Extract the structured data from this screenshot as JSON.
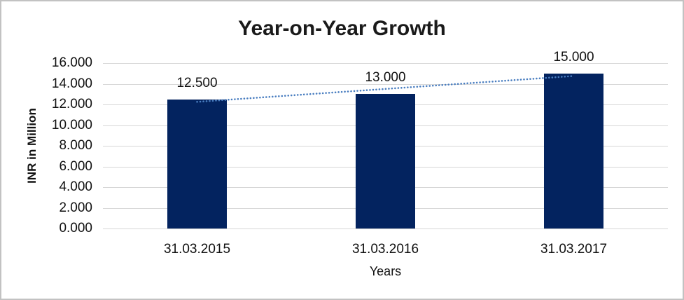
{
  "chart_data": {
    "type": "bar",
    "title": "Year-on-Year Growth",
    "categories": [
      "31.03.2015",
      "31.03.2016",
      "31.03.2017"
    ],
    "values": [
      12.5,
      13.0,
      15.0
    ],
    "value_labels": [
      "12.500",
      "13.000",
      "15.000"
    ],
    "xlabel": "Years",
    "ylabel": "INR in Million",
    "ylim": [
      0,
      16
    ],
    "ytick_step": 2,
    "ytick_labels": [
      "0.000",
      "2.000",
      "4.000",
      "6.000",
      "8.000",
      "10.000",
      "12.000",
      "14.000",
      "16.000"
    ],
    "grid": true,
    "legend": false,
    "bar_color": "#03235f",
    "gridline_color": "#d7d7d7",
    "trendline": {
      "type": "linear",
      "style": "dotted",
      "color": "#4a7ec0"
    }
  }
}
